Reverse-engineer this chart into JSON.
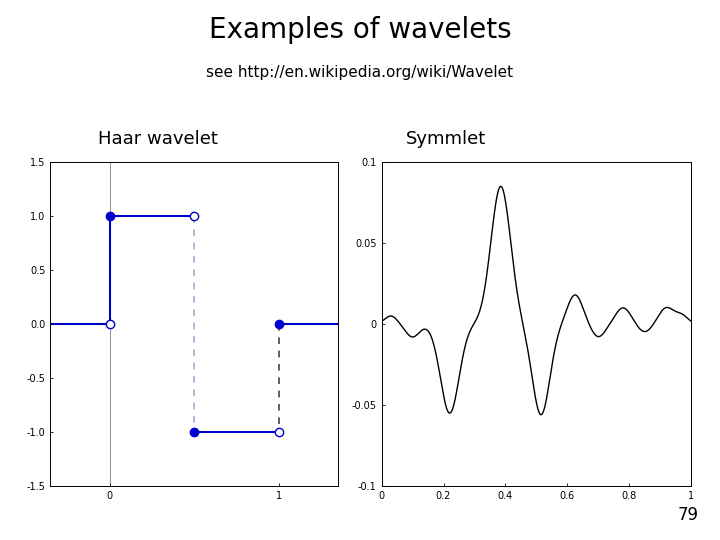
{
  "title": "Examples of wavelets",
  "subtitle": "see http://en.wikipedia.org/wiki/Wavelet",
  "label_haar": "Haar wavelet",
  "label_symmlet": "Symmlet",
  "page_number": "79",
  "haar_color": "#0000cc",
  "symmlet_color": "#000000",
  "background": "#ffffff",
  "title_fontsize": 20,
  "subtitle_fontsize": 11,
  "sublabel_fontsize": 13,
  "page_fontsize": 12
}
